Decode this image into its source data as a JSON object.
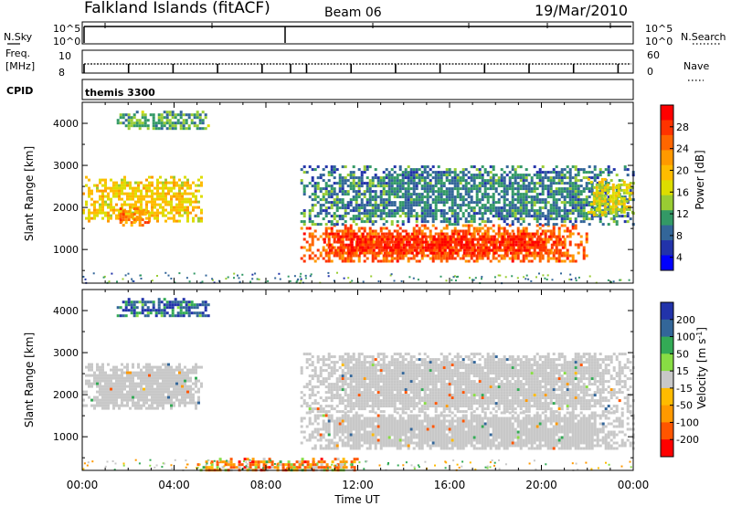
{
  "header": {
    "title": "Falkland Islands (fitACF)",
    "beam": "Beam 06",
    "date": "19/Mar/2010"
  },
  "strips": {
    "nsky_label": "N.Sky",
    "nsearch_label": "N.Search",
    "nsky_ticks": [
      "10^5",
      "10^0"
    ],
    "nsearch_ticks": [
      "10^5",
      "10^0"
    ],
    "freq_label_line1": "Freq.",
    "freq_label_line2": "[MHz]",
    "freq_ticks": [
      "10",
      "8"
    ],
    "nave_label": "Nave",
    "nave_ticks": [
      "60",
      "0"
    ],
    "cpid_label": "CPID",
    "cpid_value": "themis 3300"
  },
  "colorbars": {
    "power": {
      "label": "Power [dB]",
      "ticks": [
        "28",
        "24",
        "20",
        "16",
        "12",
        "8",
        "4"
      ],
      "colors": [
        "#ff0000",
        "#ff3300",
        "#ff6600",
        "#ff9900",
        "#ffbb00",
        "#dddd00",
        "#99cc33",
        "#339966",
        "#336699",
        "#2233aa",
        "#0000ff"
      ]
    },
    "velocity": {
      "label_main": "Velocity [m s",
      "label_exp": "-1",
      "label_end": "]",
      "ticks": [
        "200",
        "100",
        "50",
        "15",
        "-15",
        "-50",
        "-100",
        "-200"
      ],
      "colors": [
        "#2233aa",
        "#336699",
        "#33aa55",
        "#88dd44",
        "#c8c8c8",
        "#ffbb00",
        "#ff9900",
        "#ff5500",
        "#ff0000"
      ]
    }
  },
  "chart_data": [
    {
      "type": "heatmap",
      "panel": "power",
      "ylabel": "Slant Range [km]",
      "ylim": [
        200,
        4500
      ],
      "yticks": [
        1000,
        2000,
        3000,
        4000
      ],
      "xlim": [
        0,
        24
      ],
      "xticks": [
        "00:00",
        "04:00",
        "08:00",
        "12:00",
        "16:00",
        "20:00",
        "00:00"
      ],
      "xlabel": "Time UT",
      "units": "dB",
      "regions": [
        {
          "t": [
            0.0,
            5.2
          ],
          "r": [
            1700,
            2750
          ],
          "level": 18
        },
        {
          "t": [
            1.5,
            3.0
          ],
          "r": [
            1600,
            2000
          ],
          "level": 24
        },
        {
          "t": [
            1.5,
            5.5
          ],
          "r": [
            3850,
            4300
          ],
          "level": 10
        },
        {
          "t": [
            9.5,
            22.0
          ],
          "r": [
            700,
            1600
          ],
          "level": 26
        },
        {
          "t": [
            10.5,
            21.0
          ],
          "r": [
            900,
            1400
          ],
          "level": 30
        },
        {
          "t": [
            9.5,
            24.0
          ],
          "r": [
            1600,
            3000
          ],
          "level": 8
        },
        {
          "t": [
            22.0,
            24.0
          ],
          "r": [
            1800,
            2700
          ],
          "level": 16
        }
      ]
    },
    {
      "type": "heatmap",
      "panel": "velocity",
      "ylabel": "Slant Range [km]",
      "ylim": [
        200,
        4500
      ],
      "yticks": [
        1000,
        2000,
        3000,
        4000
      ],
      "xlim": [
        0,
        24
      ],
      "xticks": [
        "00:00",
        "04:00",
        "08:00",
        "12:00",
        "16:00",
        "20:00",
        "00:00"
      ],
      "xlabel": "Time UT",
      "units": "m s-1",
      "regions": [
        {
          "t": [
            0.0,
            5.2
          ],
          "r": [
            1700,
            2750
          ],
          "level": 0
        },
        {
          "t": [
            1.5,
            5.5
          ],
          "r": [
            3850,
            4300
          ],
          "level": 120
        },
        {
          "t": [
            9.5,
            24.0
          ],
          "r": [
            700,
            1600
          ],
          "level": 0
        },
        {
          "t": [
            9.5,
            24.0
          ],
          "r": [
            1600,
            3000
          ],
          "level": 0
        },
        {
          "t": [
            5.0,
            12.0
          ],
          "r": [
            200,
            500
          ],
          "level": -60
        }
      ]
    }
  ]
}
